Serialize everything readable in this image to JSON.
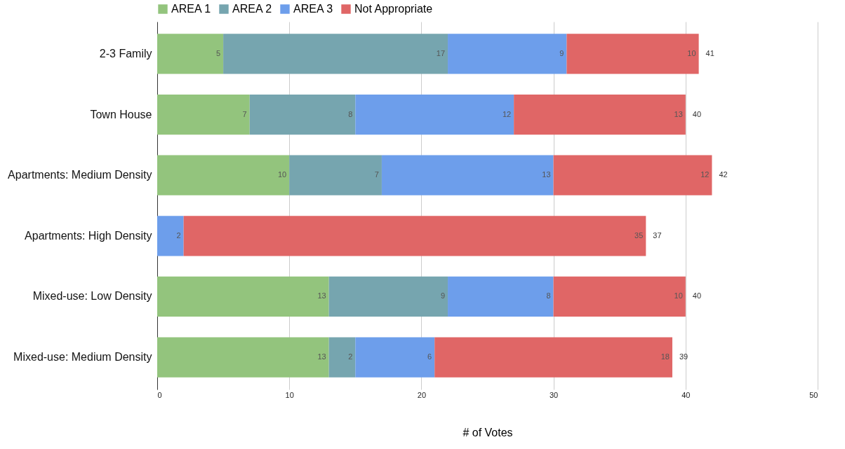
{
  "chart_data": {
    "type": "bar",
    "orientation": "horizontal",
    "stacked": true,
    "xlabel": "# of Votes",
    "categories": [
      "2-3 Family",
      "Town House",
      "Apartments: Medium Density",
      "Apartments: High Density",
      "Mixed-use: Low Density",
      "Mixed-use: Medium Density"
    ],
    "series": [
      {
        "name": "AREA 1",
        "color": "#93c47d",
        "values": [
          5,
          7,
          10,
          null,
          13,
          13
        ]
      },
      {
        "name": "AREA 2",
        "color": "#76a5af",
        "values": [
          17,
          8,
          7,
          null,
          9,
          2
        ]
      },
      {
        "name": "AREA 3",
        "color": "#6d9eeb",
        "values": [
          9,
          12,
          13,
          2,
          8,
          6
        ]
      },
      {
        "name": "Not Appropriate",
        "color": "#e06666",
        "values": [
          10,
          13,
          12,
          35,
          10,
          18
        ]
      }
    ],
    "totals": [
      "41",
      "40",
      "42",
      "37",
      "40",
      "39"
    ],
    "data_labels": true,
    "xlim": [
      0,
      50
    ],
    "xticks": [
      0,
      10,
      20,
      30,
      40,
      50
    ],
    "grid": "x",
    "legend": "top"
  }
}
